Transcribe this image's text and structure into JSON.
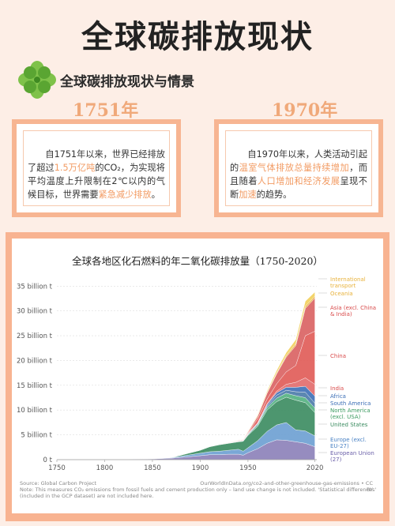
{
  "header": {
    "title": "全球碳排放现状"
  },
  "section": {
    "title": "全球碳排放现状与情景"
  },
  "cards": [
    {
      "year": "1751年",
      "segments": [
        {
          "t": "自1751年以来，世界已经排放了超过",
          "hl": false
        },
        {
          "t": "1.5万亿吨",
          "hl": true
        },
        {
          "t": "的CO₂，为实现将平均温度上升限制在2℃以内的气候目标，世界需要",
          "hl": false
        },
        {
          "t": "紧急减少排放",
          "hl": true
        },
        {
          "t": "。",
          "hl": false
        }
      ]
    },
    {
      "year": "1970年",
      "segments": [
        {
          "t": "自1970年以来，人类活动引起的",
          "hl": false
        },
        {
          "t": "温室气体排放总量持续增加",
          "hl": true
        },
        {
          "t": "，而且随着",
          "hl": false
        },
        {
          "t": "人口增加和经济发展",
          "hl": true
        },
        {
          "t": "呈现不断",
          "hl": false
        },
        {
          "t": "加速",
          "hl": true
        },
        {
          "t": "的趋势。",
          "hl": false
        }
      ]
    }
  ],
  "chart_data": {
    "type": "area",
    "title": "全球各地区化石燃料的年二氧化碳排放量（1750-2020）",
    "x": [
      1750,
      1800,
      1850,
      1870,
      1900,
      1910,
      1920,
      1930,
      1940,
      1945,
      1950,
      1960,
      1970,
      1980,
      1990,
      2000,
      2010,
      2020
    ],
    "x_ticks": [
      "1750",
      "1800",
      "1850",
      "1900",
      "1950",
      "2020"
    ],
    "x_tick_values": [
      1750,
      1800,
      1850,
      1900,
      1950,
      2020
    ],
    "y_ticks": [
      "0 t",
      "5 billion t",
      "10 billion t",
      "15 billion t",
      "20 billion t",
      "25 billion t",
      "30 billion t",
      "35 billion t"
    ],
    "y_tick_values": [
      0,
      5,
      10,
      15,
      20,
      25,
      30,
      35
    ],
    "ylim": [
      0,
      36
    ],
    "grid": true,
    "series": [
      {
        "name": "European Union (27)",
        "color": "#8b7fb8",
        "values": [
          0,
          0,
          0.15,
          0.3,
          0.8,
          1.0,
          1.0,
          1.1,
          1.1,
          0.9,
          1.4,
          2.2,
          3.3,
          4.0,
          3.9,
          3.6,
          3.3,
          2.6
        ]
      },
      {
        "name": "Europe (excl. EU-27)",
        "color": "#6c9fd1",
        "values": [
          0,
          0,
          0.05,
          0.1,
          0.5,
          0.6,
          0.7,
          0.8,
          1.0,
          0.8,
          1.0,
          1.6,
          2.4,
          3.0,
          3.6,
          2.4,
          2.5,
          2.2
        ]
      },
      {
        "name": "United States",
        "color": "#3a8b5f",
        "values": [
          0,
          0,
          0.02,
          0.05,
          0.6,
          1.0,
          1.3,
          1.4,
          1.5,
          2.0,
          2.5,
          2.9,
          4.3,
          4.7,
          5.1,
          6.0,
          5.7,
          4.7
        ]
      },
      {
        "name": "North America (excl. USA)",
        "color": "#52b07f",
        "values": [
          0,
          0,
          0,
          0,
          0.02,
          0.05,
          0.06,
          0.06,
          0.06,
          0.08,
          0.1,
          0.3,
          0.5,
          0.7,
          0.8,
          0.9,
          1.0,
          0.9
        ]
      },
      {
        "name": "South America",
        "color": "#4a7aa8",
        "values": [
          0,
          0,
          0,
          0,
          0,
          0.01,
          0.02,
          0.03,
          0.05,
          0.06,
          0.1,
          0.2,
          0.3,
          0.6,
          0.6,
          0.8,
          1.1,
          1.0
        ]
      },
      {
        "name": "Africa",
        "color": "#3d6fb6",
        "values": [
          0,
          0,
          0,
          0,
          0.01,
          0.01,
          0.02,
          0.02,
          0.03,
          0.04,
          0.1,
          0.1,
          0.3,
          0.5,
          0.6,
          0.9,
          1.2,
          1.4
        ]
      },
      {
        "name": "India",
        "color": "#e26a6a",
        "values": [
          0,
          0,
          0,
          0,
          0.01,
          0.01,
          0.02,
          0.03,
          0.03,
          0.04,
          0.1,
          0.1,
          0.2,
          0.3,
          0.6,
          1.0,
          1.7,
          2.4
        ]
      },
      {
        "name": "China",
        "color": "#e05a55",
        "values": [
          0,
          0,
          0,
          0,
          0.01,
          0.01,
          0.02,
          0.02,
          0.03,
          0.03,
          0.08,
          0.8,
          0.9,
          1.5,
          2.5,
          3.4,
          8.5,
          10.7
        ]
      },
      {
        "name": "Asia (excl. China & India)",
        "color": "#d96060",
        "values": [
          0,
          0,
          0,
          0,
          0.01,
          0.02,
          0.03,
          0.05,
          0.1,
          0.1,
          0.2,
          0.5,
          1.2,
          2.0,
          3.0,
          4.0,
          5.5,
          6.7
        ]
      },
      {
        "name": "Oceania",
        "color": "#e9b44c",
        "values": [
          0,
          0,
          0,
          0,
          0.01,
          0.01,
          0.02,
          0.02,
          0.03,
          0.03,
          0.04,
          0.1,
          0.15,
          0.2,
          0.3,
          0.4,
          0.45,
          0.4
        ]
      },
      {
        "name": "International transport",
        "color": "#f2cf5a",
        "values": [
          0,
          0,
          0,
          0,
          0,
          0,
          0.01,
          0.01,
          0.02,
          0.02,
          0.1,
          0.2,
          0.3,
          0.5,
          0.6,
          0.8,
          1.0,
          0.8
        ]
      }
    ],
    "legend_labels": [
      {
        "lines": [
          "International",
          "transport"
        ],
        "color": "#e8b23c"
      },
      {
        "lines": [
          "Oceania"
        ],
        "color": "#e8b23c"
      },
      {
        "lines": [
          "Asia (excl. China",
          "& India)"
        ],
        "color": "#d94b4b"
      },
      {
        "lines": [
          "China"
        ],
        "color": "#d94b4b"
      },
      {
        "lines": [
          "India"
        ],
        "color": "#d94b4b"
      },
      {
        "lines": [
          "Africa"
        ],
        "color": "#3d6fb6"
      },
      {
        "lines": [
          "South America"
        ],
        "color": "#3d6fb6"
      },
      {
        "lines": [
          "North America",
          "(excl. USA)"
        ],
        "color": "#3a9a5f"
      },
      {
        "lines": [
          "United States"
        ],
        "color": "#3a8b5f"
      },
      {
        "lines": [
          "Europe (excl.",
          "EU-27)"
        ],
        "color": "#4a82c4"
      },
      {
        "lines": [
          "European Union",
          "(27)"
        ],
        "color": "#6a5fa8"
      }
    ],
    "source_left": "Source: Global Carbon Project",
    "source_right": "OurWorldInData.org/co2-and-other-greenhouse-gas-emissions • CC BY",
    "note": "Note: This measures CO₂ emissions from fossil fuels and cement production only – land use change is not included. 'Statistical differences' (included in the GCP dataset) are not included here."
  }
}
